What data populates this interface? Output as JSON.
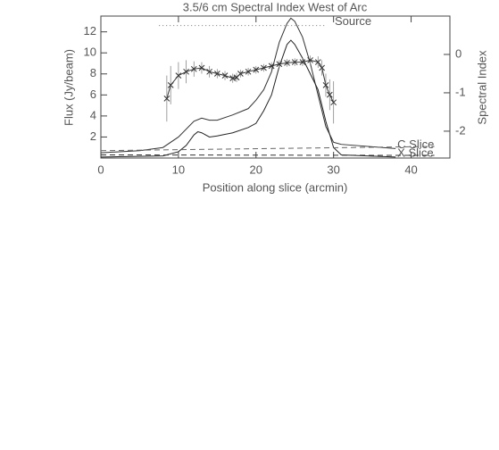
{
  "chart_data": {
    "type": "line",
    "title": "3.5/6 cm Spectral Index West of Arc",
    "x_label": "Position along slice (arcmin)",
    "y_label": "Flux (Jy/beam)",
    "y2_label": "Spectral Index",
    "xlim": [
      0,
      45
    ],
    "xticks": [
      0,
      10,
      20,
      30,
      40
    ],
    "ylim": [
      0,
      13.5
    ],
    "yticks": [
      2,
      4,
      6,
      8,
      10,
      12
    ],
    "y2lim": [
      -2.7,
      1.0
    ],
    "y2ticks": [
      -2,
      -1,
      0
    ],
    "series": [
      {
        "name": "C Slice",
        "color": "#333333",
        "style": "solid",
        "x": [
          0,
          5,
          8,
          10,
          12,
          13,
          14,
          15,
          17,
          19,
          20,
          21,
          22,
          23,
          24,
          24.5,
          25,
          26,
          27,
          28,
          29,
          30,
          31,
          38
        ],
        "values": [
          0.5,
          0.7,
          1.0,
          2.0,
          3.5,
          3.8,
          3.6,
          3.6,
          4.1,
          4.7,
          5.5,
          6.5,
          8.2,
          11.0,
          12.8,
          13.3,
          13.0,
          11.5,
          9.0,
          6.0,
          3.0,
          1.5,
          1.3,
          0.9
        ]
      },
      {
        "name": "X Slice",
        "color": "#222222",
        "style": "solid",
        "x": [
          0,
          8,
          10,
          11,
          12,
          12.5,
          13,
          14,
          15,
          17,
          19,
          20,
          21,
          22,
          23,
          24,
          24.5,
          25,
          26,
          27,
          28,
          29,
          30,
          31,
          38
        ],
        "values": [
          0.1,
          0.2,
          0.6,
          1.2,
          2.2,
          2.5,
          2.4,
          2.0,
          2.1,
          2.4,
          2.9,
          3.3,
          4.5,
          6.0,
          8.7,
          10.8,
          11.2,
          10.8,
          9.5,
          8.0,
          6.5,
          3.5,
          1.0,
          0.3,
          0.1
        ]
      },
      {
        "color": "#666666",
        "style": "dashed",
        "x": [
          0,
          43
        ],
        "values": [
          0.7,
          1.1
        ]
      },
      {
        "color": "#333333",
        "style": "dashed",
        "x": [
          0,
          43
        ],
        "values": [
          0.3,
          0.25
        ]
      },
      {
        "name": "Source",
        "color": "#777777",
        "style": "dotted",
        "x": [
          7.5,
          29
        ],
        "values": [
          12.6,
          12.6
        ]
      },
      {
        "color": "#333333",
        "style": "solid",
        "marker": "x",
        "axis": "y2",
        "x": [
          8.5,
          9,
          10,
          11,
          12,
          13,
          14,
          15,
          16,
          17,
          17.5,
          18,
          19,
          20,
          21,
          22,
          23,
          24,
          25,
          26,
          27,
          28,
          28.5,
          29,
          29.5,
          30
        ],
        "values": [
          -1.15,
          -0.8,
          -0.55,
          -0.45,
          -0.38,
          -0.35,
          -0.45,
          -0.5,
          -0.55,
          -0.62,
          -0.6,
          -0.5,
          -0.45,
          -0.4,
          -0.35,
          -0.3,
          -0.25,
          -0.22,
          -0.2,
          -0.2,
          -0.15,
          -0.2,
          -0.35,
          -0.8,
          -1.05,
          -1.25
        ],
        "errors": [
          0.6,
          0.5,
          0.35,
          0.3,
          0.2,
          0.15,
          0.15,
          0.12,
          0.12,
          0.12,
          0.12,
          0.1,
          0.1,
          0.1,
          0.1,
          0.1,
          0.1,
          0.1,
          0.1,
          0.1,
          0.12,
          0.15,
          0.2,
          0.3,
          0.4,
          0.55
        ]
      }
    ]
  }
}
